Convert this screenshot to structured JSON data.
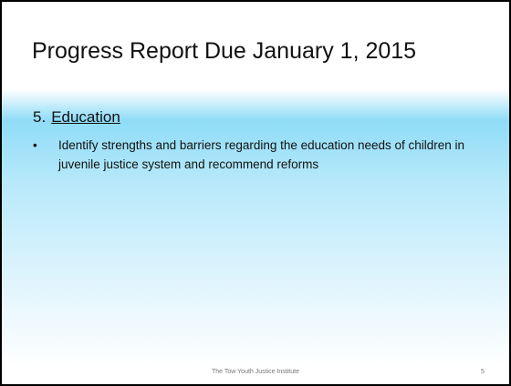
{
  "title": "Progress Report Due January 1, 2015",
  "section": {
    "number": "5.",
    "heading": "Education"
  },
  "bullets": [
    "Identify strengths and barriers regarding the education needs of children in juvenile justice system and recommend reforms"
  ],
  "footer": {
    "text": "The Tow Youth Justice Institute",
    "page_number": "5"
  }
}
